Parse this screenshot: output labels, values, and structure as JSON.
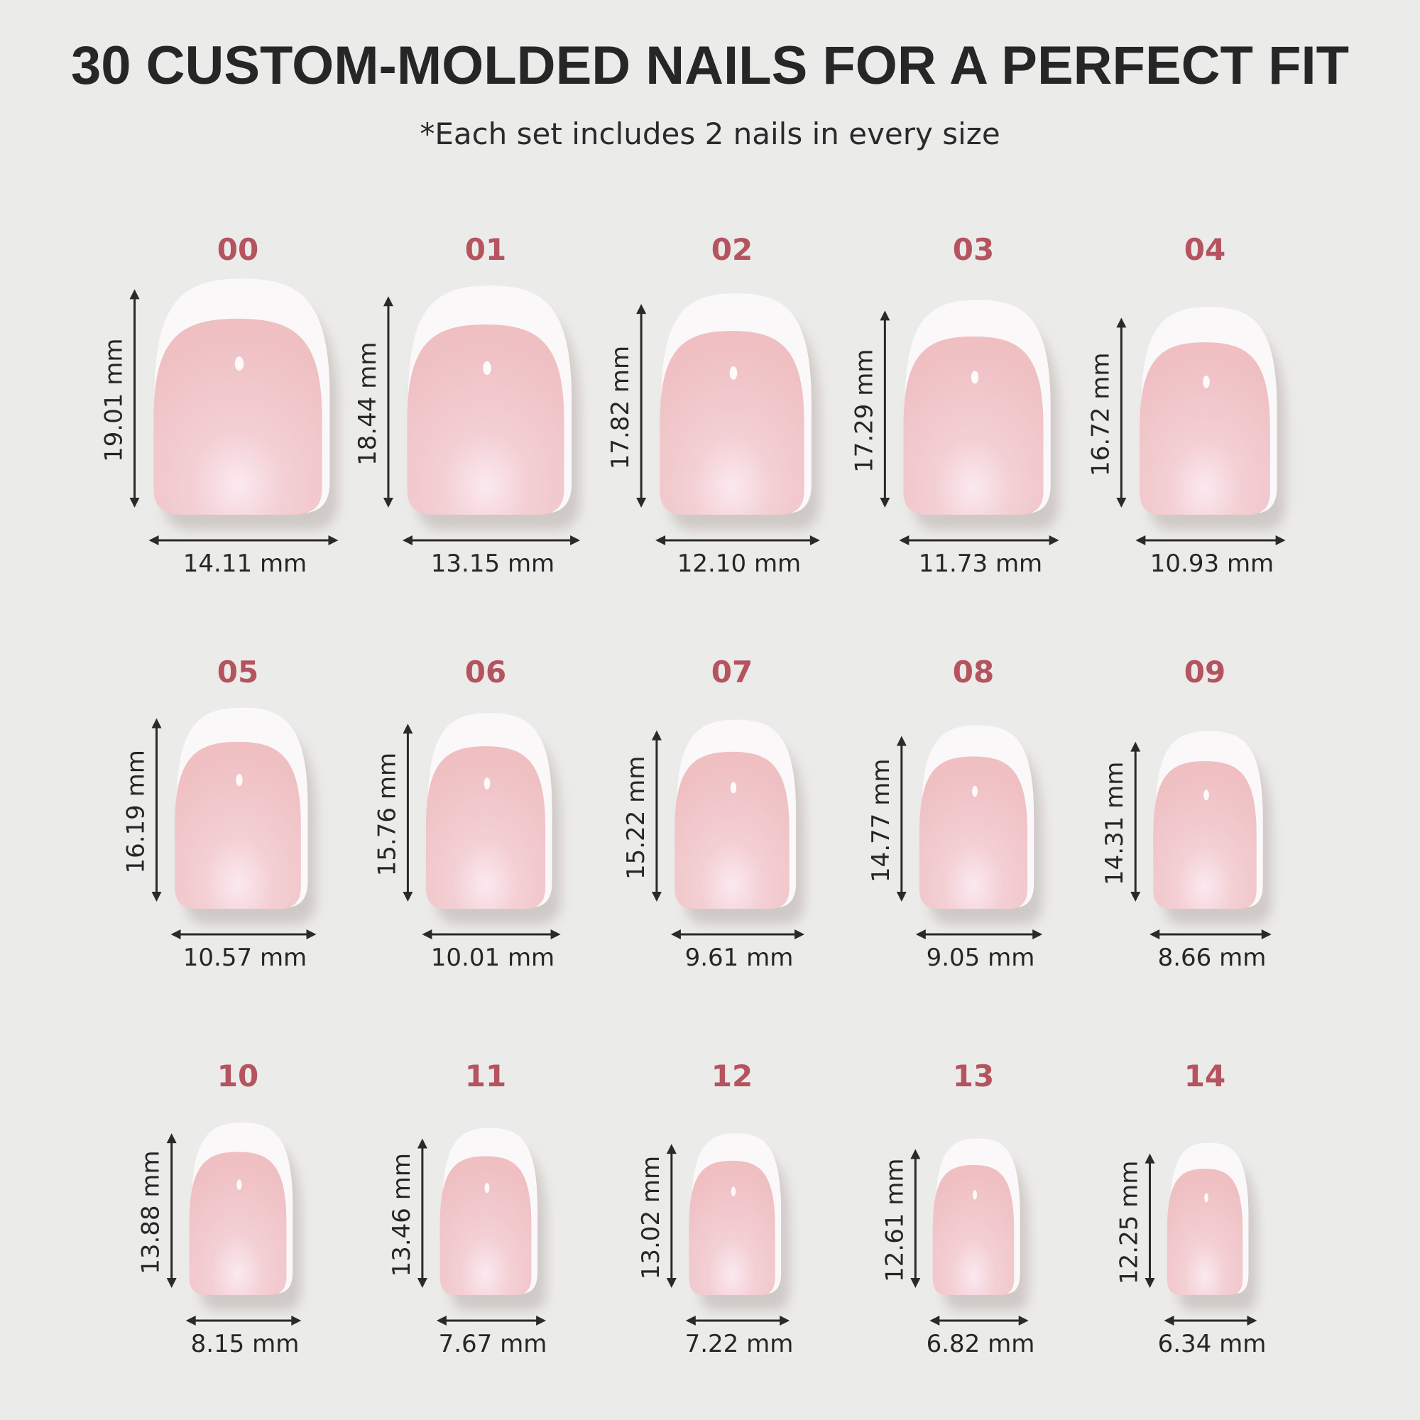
{
  "header": {
    "title": "30 CUSTOM-MOLDED NAILS FOR A PERFECT FIT",
    "subtitle": "*Each set includes 2 nails in every size"
  },
  "colors": {
    "background": "#ebebe9",
    "size_number": "#b5535f",
    "nail_pink": "#f2c6c8",
    "nail_tip": "#fbf8fa",
    "text": "#262626"
  },
  "sizes": [
    {
      "size": "00",
      "length": "19.01 mm",
      "width": "14.11 mm",
      "length_mm": 19.01,
      "width_mm": 14.11
    },
    {
      "size": "01",
      "length": "18.44 mm",
      "width": "13.15 mm",
      "length_mm": 18.44,
      "width_mm": 13.15
    },
    {
      "size": "02",
      "length": "17.82 mm",
      "width": "12.10 mm",
      "length_mm": 17.82,
      "width_mm": 12.1
    },
    {
      "size": "03",
      "length": "17.29 mm",
      "width": "11.73 mm",
      "length_mm": 17.29,
      "width_mm": 11.73
    },
    {
      "size": "04",
      "length": "16.72 mm",
      "width": "10.93 mm",
      "length_mm": 16.72,
      "width_mm": 10.93
    },
    {
      "size": "05",
      "length": "16.19 mm",
      "width": "10.57 mm",
      "length_mm": 16.19,
      "width_mm": 10.57
    },
    {
      "size": "06",
      "length": "15.76 mm",
      "width": "10.01 mm",
      "length_mm": 15.76,
      "width_mm": 10.01
    },
    {
      "size": "07",
      "length": "15.22 mm",
      "width": "9.61 mm",
      "length_mm": 15.22,
      "width_mm": 9.61
    },
    {
      "size": "08",
      "length": "14.77 mm",
      "width": "9.05 mm",
      "length_mm": 14.77,
      "width_mm": 9.05
    },
    {
      "size": "09",
      "length": "14.31 mm",
      "width": "8.66 mm",
      "length_mm": 14.31,
      "width_mm": 8.66
    },
    {
      "size": "10",
      "length": "13.88 mm",
      "width": "8.15 mm",
      "length_mm": 13.88,
      "width_mm": 8.15
    },
    {
      "size": "11",
      "length": "13.46 mm",
      "width": "7.67 mm",
      "length_mm": 13.46,
      "width_mm": 7.67
    },
    {
      "size": "12",
      "length": "13.02 mm",
      "width": "7.22 mm",
      "length_mm": 13.02,
      "width_mm": 7.22
    },
    {
      "size": "13",
      "length": "12.61 mm",
      "width": "6.82 mm",
      "length_mm": 12.61,
      "width_mm": 6.82
    },
    {
      "size": "14",
      "length": "12.25 mm",
      "width": "6.34 mm",
      "length_mm": 12.25,
      "width_mm": 6.34
    }
  ]
}
